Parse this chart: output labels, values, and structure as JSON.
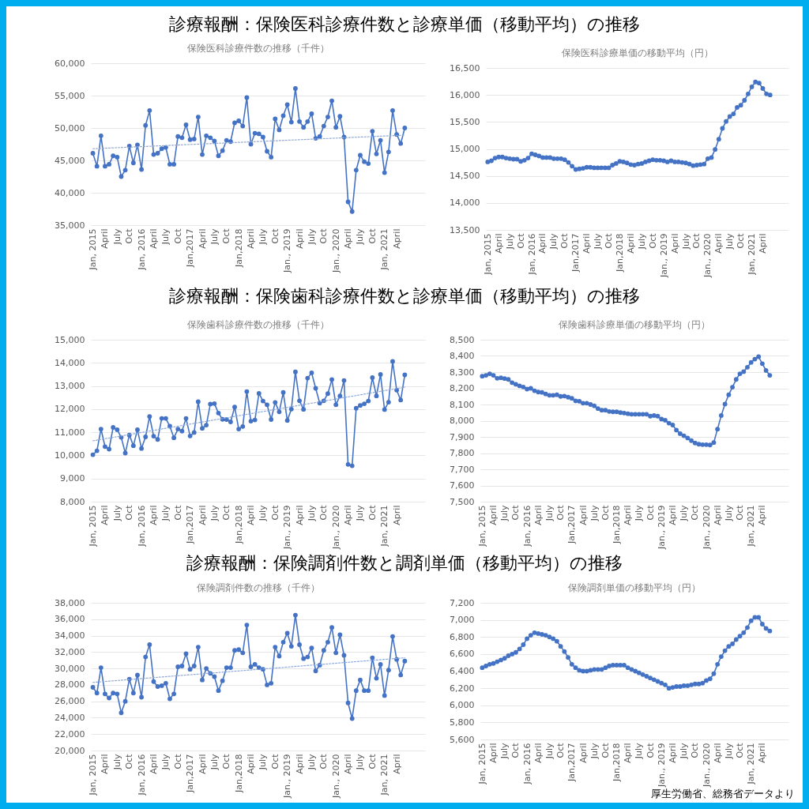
{
  "chart_data": [
    {
      "type": "other",
      "title": "診療報酬：保険医科診療件数と診療単価（移動平均）の推移"
    },
    {
      "type": "line",
      "title": "保険医科診療件数の推移（千件）",
      "categories": [
        "Jan, 2015",
        null,
        null,
        "April",
        null,
        null,
        "July",
        null,
        null,
        "Oct",
        null,
        null,
        "Jan, 2016",
        null,
        null,
        "April",
        null,
        null,
        "July",
        null,
        null,
        "Oct",
        null,
        null,
        "Jan,2017",
        null,
        null,
        "April",
        null,
        null,
        "July",
        null,
        null,
        "Oct",
        null,
        null,
        "Jan,2018",
        null,
        null,
        "April",
        null,
        null,
        "July",
        null,
        null,
        "Oct",
        null,
        null,
        "Jan., 2019",
        null,
        null,
        "April",
        null,
        null,
        "July",
        null,
        null,
        "Oct",
        null,
        null,
        "Jan., 2020",
        null,
        null,
        "April",
        null,
        null,
        "July",
        null,
        null,
        "Oct",
        null,
        null,
        "Jan, 2021",
        null,
        null,
        "April",
        null,
        null
      ],
      "ylim": [
        35000,
        60000
      ],
      "yticks": [
        {
          "value": 35000,
          "label": "35,000"
        },
        {
          "value": 40000,
          "label": "40,000"
        },
        {
          "value": 45000,
          "label": "45,000"
        },
        {
          "value": 50000,
          "label": "50,000"
        },
        {
          "value": 55000,
          "label": "55,000"
        },
        {
          "value": 60000,
          "label": "60,000"
        }
      ],
      "grid": "y",
      "marker": "circle",
      "series": [
        {
          "color": "#4472c4",
          "values": [
            46100,
            44100,
            48800,
            44100,
            44400,
            45700,
            45500,
            42500,
            43500,
            47200,
            44600,
            47400,
            43600,
            50400,
            52700,
            45900,
            46100,
            46800,
            47000,
            44400,
            44400,
            48700,
            48500,
            50500,
            48200,
            48300,
            51700,
            45900,
            48800,
            48500,
            48000,
            45700,
            46500,
            48100,
            47900,
            50800,
            51100,
            50300,
            54700,
            47500,
            49200,
            49100,
            48600,
            46400,
            45500,
            51400,
            49700,
            51900,
            53600,
            50900,
            56100,
            51000,
            50100,
            51000,
            52200,
            48400,
            48700,
            50300,
            51700,
            54200,
            50100,
            51800,
            48600,
            38600,
            37100,
            43500,
            45800,
            44800,
            44500,
            49500,
            46000,
            48100,
            43100,
            46300,
            52700,
            49000,
            47600,
            50000
          ]
        },
        {
          "type": "line",
          "color": "#8eaadb",
          "line_style": "dotted",
          "marker": "none",
          "values": [
            46800,
            null,
            null,
            null,
            null,
            null,
            null,
            null,
            null,
            null,
            null,
            null,
            null,
            null,
            null,
            null,
            null,
            null,
            null,
            null,
            null,
            null,
            null,
            null,
            null,
            null,
            null,
            null,
            null,
            null,
            null,
            null,
            null,
            null,
            null,
            null,
            null,
            null,
            null,
            null,
            null,
            null,
            null,
            null,
            null,
            null,
            null,
            null,
            null,
            null,
            null,
            null,
            null,
            null,
            null,
            null,
            null,
            null,
            null,
            null,
            null,
            null,
            null,
            null,
            null,
            null,
            null,
            null,
            null,
            null,
            null,
            null,
            null,
            null,
            null,
            null,
            null,
            48900
          ]
        }
      ]
    },
    {
      "type": "line",
      "title": "保険医科診療単価の移動平均（円）",
      "categories": [
        "Jan, 2015",
        null,
        null,
        "April",
        null,
        null,
        "July",
        null,
        null,
        "Oct",
        null,
        null,
        "Jan, 2016",
        null,
        null,
        "April",
        null,
        null,
        "July",
        null,
        null,
        "Oct",
        null,
        null,
        "Jan,2017",
        null,
        null,
        "April",
        null,
        null,
        "July",
        null,
        null,
        "Oct",
        null,
        null,
        "Jan,2018",
        null,
        null,
        "April",
        null,
        null,
        "July",
        null,
        null,
        "Oct",
        null,
        null,
        "Jan., 2019",
        null,
        null,
        "April",
        null,
        null,
        "July",
        null,
        null,
        "Oct",
        null,
        null,
        "Jan., 2020",
        null,
        null,
        "April",
        null,
        null,
        "July",
        null,
        null,
        "Oct",
        null,
        null,
        "Jan, 2021",
        null,
        null,
        "April",
        null,
        null
      ],
      "ylim": [
        13500,
        16500
      ],
      "yticks": [
        {
          "value": 13500,
          "label": "13,500"
        },
        {
          "value": 14000,
          "label": "14,000"
        },
        {
          "value": 14500,
          "label": "14,500"
        },
        {
          "value": 15000,
          "label": "15,000"
        },
        {
          "value": 15500,
          "label": "15,500"
        },
        {
          "value": 16000,
          "label": "16,000"
        },
        {
          "value": 16500,
          "label": "16,500"
        }
      ],
      "grid": "y",
      "marker": "circle",
      "series": [
        {
          "color": "#4472c4",
          "values": [
            14760,
            14780,
            14830,
            14850,
            14850,
            14830,
            14820,
            14810,
            14810,
            14770,
            14790,
            14830,
            14910,
            14890,
            14870,
            14840,
            14840,
            14840,
            14820,
            14820,
            14820,
            14800,
            14750,
            14680,
            14620,
            14630,
            14640,
            14660,
            14660,
            14650,
            14650,
            14650,
            14650,
            14650,
            14700,
            14730,
            14770,
            14760,
            14740,
            14710,
            14700,
            14720,
            14730,
            14760,
            14780,
            14800,
            14790,
            14790,
            14780,
            14760,
            14780,
            14760,
            14760,
            14750,
            14740,
            14720,
            14690,
            14700,
            14710,
            14720,
            14820,
            14840,
            14990,
            15180,
            15380,
            15510,
            15600,
            15650,
            15770,
            15810,
            15900,
            16020,
            16150,
            16240,
            16220,
            16120,
            16020,
            16000
          ]
        }
      ]
    },
    {
      "type": "other",
      "title": "診療報酬：保険歯科診療件数と診療単価（移動平均）の推移"
    },
    {
      "type": "line",
      "title": "保険歯科診療件数の推移（千件）",
      "categories": [
        "Jan, 2015",
        null,
        null,
        "April",
        null,
        null,
        "July",
        null,
        null,
        "Oct",
        null,
        null,
        "Jan, 2016",
        null,
        null,
        "April",
        null,
        null,
        "July",
        null,
        null,
        "Oct",
        null,
        null,
        "Jan,2017",
        null,
        null,
        "April",
        null,
        null,
        "July",
        null,
        null,
        "Oct",
        null,
        null,
        "Jan,2018",
        null,
        null,
        "April",
        null,
        null,
        "July",
        null,
        null,
        "Oct",
        null,
        null,
        "Jan., 2019",
        null,
        null,
        "April",
        null,
        null,
        "July",
        null,
        null,
        "Oct",
        null,
        null,
        "Jan., 2020",
        null,
        null,
        "April",
        null,
        null,
        "July",
        null,
        null,
        "Oct",
        null,
        null,
        "Jan, 2021",
        null,
        null,
        "April",
        null,
        null
      ],
      "ylim": [
        8000,
        15000
      ],
      "yticks": [
        {
          "value": 8000,
          "label": "8,000"
        },
        {
          "value": 9000,
          "label": "9,000"
        },
        {
          "value": 10000,
          "label": "10,000"
        },
        {
          "value": 11000,
          "label": "11,000"
        },
        {
          "value": 12000,
          "label": "12,000"
        },
        {
          "value": 13000,
          "label": "13,000"
        },
        {
          "value": 14000,
          "label": "14,000"
        },
        {
          "value": 15000,
          "label": "15,000"
        }
      ],
      "grid": "y",
      "marker": "circle",
      "series": [
        {
          "color": "#4472c4",
          "values": [
            10030,
            10200,
            11140,
            10380,
            10270,
            11210,
            11110,
            10780,
            10100,
            10880,
            10420,
            11110,
            10300,
            10800,
            11680,
            10830,
            10690,
            11600,
            11600,
            11260,
            10760,
            11140,
            11050,
            11600,
            10840,
            10990,
            12320,
            11170,
            11310,
            12220,
            12240,
            11830,
            11560,
            11550,
            11450,
            12090,
            11140,
            11250,
            12760,
            11480,
            11530,
            12680,
            12350,
            12190,
            11550,
            12290,
            11880,
            12720,
            11510,
            12000,
            13610,
            12360,
            11990,
            13340,
            13570,
            12900,
            12260,
            12360,
            12670,
            13280,
            12190,
            12570,
            13240,
            9610,
            9550,
            12040,
            12160,
            12230,
            12350,
            13360,
            12570,
            13500,
            11980,
            12300,
            14060,
            12820,
            12390,
            13480
          ]
        },
        {
          "type": "line",
          "color": "#8eaadb",
          "line_style": "dotted",
          "marker": "none",
          "values": [
            10630,
            null,
            null,
            null,
            null,
            null,
            null,
            null,
            null,
            null,
            null,
            null,
            null,
            null,
            null,
            null,
            null,
            null,
            null,
            null,
            null,
            null,
            null,
            null,
            null,
            null,
            null,
            null,
            null,
            null,
            null,
            null,
            null,
            null,
            null,
            null,
            null,
            null,
            null,
            null,
            null,
            null,
            null,
            null,
            null,
            null,
            null,
            null,
            null,
            null,
            null,
            null,
            null,
            null,
            null,
            null,
            null,
            null,
            null,
            null,
            null,
            null,
            null,
            null,
            null,
            null,
            null,
            null,
            null,
            null,
            null,
            null,
            null,
            null,
            null,
            null,
            null,
            12950
          ]
        }
      ]
    },
    {
      "type": "line",
      "title": "保険歯科診療単価の移動平均（円）",
      "categories": [
        "Jan, 2015",
        null,
        null,
        "April",
        null,
        null,
        "July",
        null,
        null,
        "Oct",
        null,
        null,
        "Jan, 2016",
        null,
        null,
        "April",
        null,
        null,
        "July",
        null,
        null,
        "Oct",
        null,
        null,
        "Jan,2017",
        null,
        null,
        "April",
        null,
        null,
        "July",
        null,
        null,
        "Oct",
        null,
        null,
        "Jan,2018",
        null,
        null,
        "April",
        null,
        null,
        "July",
        null,
        null,
        "Oct",
        null,
        null,
        "Jan., 2019",
        null,
        null,
        "April",
        null,
        null,
        "July",
        null,
        null,
        "Oct",
        null,
        null,
        "Jan., 2020",
        null,
        null,
        "April",
        null,
        null,
        "July",
        null,
        null,
        "Oct",
        null,
        null,
        "Jan, 2021",
        null,
        null,
        "April",
        null,
        null
      ],
      "ylim": [
        7500,
        8500
      ],
      "yticks": [
        {
          "value": 7500,
          "label": "7,500"
        },
        {
          "value": 7600,
          "label": "7,600"
        },
        {
          "value": 7700,
          "label": "7,700"
        },
        {
          "value": 7800,
          "label": "7,800"
        },
        {
          "value": 7900,
          "label": "7,900"
        },
        {
          "value": 8000,
          "label": "8,000"
        },
        {
          "value": 8100,
          "label": "8,100"
        },
        {
          "value": 8200,
          "label": "8,200"
        },
        {
          "value": 8300,
          "label": "8,300"
        },
        {
          "value": 8400,
          "label": "8,400"
        },
        {
          "value": 8500,
          "label": "8,500"
        }
      ],
      "grid": "y",
      "marker": "circle",
      "series": [
        {
          "color": "#4472c4",
          "values": [
            8275,
            8280,
            8290,
            8280,
            8262,
            8265,
            8260,
            8255,
            8235,
            8225,
            8215,
            8208,
            8195,
            8200,
            8185,
            8177,
            8175,
            8165,
            8157,
            8157,
            8160,
            8150,
            8152,
            8145,
            8138,
            8122,
            8120,
            8108,
            8108,
            8100,
            8092,
            8075,
            8065,
            8065,
            8057,
            8055,
            8055,
            8050,
            8047,
            8043,
            8040,
            8040,
            8040,
            8040,
            8040,
            8028,
            8032,
            8028,
            8010,
            8003,
            7985,
            7973,
            7942,
            7920,
            7907,
            7893,
            7877,
            7862,
            7855,
            7852,
            7852,
            7850,
            7865,
            7948,
            8032,
            8103,
            8160,
            8207,
            8255,
            8290,
            8303,
            8330,
            8360,
            8380,
            8395,
            8352,
            8310,
            8280
          ]
        }
      ]
    },
    {
      "type": "other",
      "title": "診療報酬：保険調剤件数と調剤単価（移動平均）の推移"
    },
    {
      "type": "line",
      "title": "保険調剤件数の推移（千件）",
      "categories": [
        "Jan, 2015",
        null,
        null,
        "April",
        null,
        null,
        "July",
        null,
        null,
        "Oct",
        null,
        null,
        "Jan, 2016",
        null,
        null,
        "April",
        null,
        null,
        "July",
        null,
        null,
        "Oct",
        null,
        null,
        "Jan,2017",
        null,
        null,
        "April",
        null,
        null,
        "July",
        null,
        null,
        "Oct",
        null,
        null,
        "Jan,2018",
        null,
        null,
        "April",
        null,
        null,
        "July",
        null,
        null,
        "Oct",
        null,
        null,
        "Jan., 2019",
        null,
        null,
        "April",
        null,
        null,
        "July",
        null,
        null,
        "Oct",
        null,
        null,
        "Jan., 2020",
        null,
        null,
        "April",
        null,
        null,
        "July",
        null,
        null,
        "Oct",
        null,
        null,
        "Jan, 2021",
        null,
        null,
        "April",
        null,
        null
      ],
      "ylim": [
        20000,
        38000
      ],
      "yticks": [
        {
          "value": 20000,
          "label": "20,000"
        },
        {
          "value": 22000,
          "label": "22,000"
        },
        {
          "value": 24000,
          "label": "24,000"
        },
        {
          "value": 26000,
          "label": "26,000"
        },
        {
          "value": 28000,
          "label": "28,000"
        },
        {
          "value": 30000,
          "label": "30,000"
        },
        {
          "value": 32000,
          "label": "32,000"
        },
        {
          "value": 34000,
          "label": "34,000"
        },
        {
          "value": 36000,
          "label": "36,000"
        },
        {
          "value": 38000,
          "label": "38,000"
        }
      ],
      "grid": "y",
      "marker": "circle",
      "series": [
        {
          "color": "#4472c4",
          "values": [
            27700,
            27000,
            30100,
            26900,
            26400,
            27000,
            26900,
            24600,
            26000,
            28700,
            27000,
            29200,
            26500,
            31400,
            32900,
            28400,
            27800,
            27900,
            28200,
            26300,
            26900,
            30200,
            30300,
            31800,
            29900,
            30300,
            32600,
            28600,
            30000,
            29400,
            29000,
            27300,
            28500,
            30100,
            30100,
            32200,
            32300,
            31900,
            35300,
            30200,
            30500,
            30100,
            29900,
            28000,
            28200,
            32600,
            31500,
            33200,
            34300,
            32700,
            36500,
            32900,
            31200,
            31400,
            32500,
            29700,
            30400,
            32200,
            33200,
            35000,
            31900,
            34100,
            31600,
            25800,
            23900,
            27300,
            28600,
            27300,
            27300,
            31300,
            28800,
            30500,
            26700,
            29800,
            33900,
            31100,
            29200,
            30900
          ]
        },
        {
          "type": "line",
          "color": "#8eaadb",
          "line_style": "dotted",
          "marker": "none",
          "values": [
            28300,
            null,
            null,
            null,
            null,
            null,
            null,
            null,
            null,
            null,
            null,
            null,
            null,
            null,
            null,
            null,
            null,
            null,
            null,
            null,
            null,
            null,
            null,
            null,
            null,
            null,
            null,
            null,
            null,
            null,
            null,
            null,
            null,
            null,
            null,
            null,
            null,
            null,
            null,
            null,
            null,
            null,
            null,
            null,
            null,
            null,
            null,
            null,
            null,
            null,
            null,
            null,
            null,
            null,
            null,
            null,
            null,
            null,
            null,
            null,
            null,
            null,
            null,
            null,
            null,
            null,
            null,
            null,
            null,
            null,
            null,
            null,
            null,
            null,
            null,
            null,
            null,
            31300
          ]
        }
      ]
    },
    {
      "type": "line",
      "title": "保険調剤単価の移動平均（円）",
      "annotations": [
        "厚生労働省、総務省データより"
      ],
      "categories": [
        "Jan, 2015",
        null,
        null,
        "April",
        null,
        null,
        "July",
        null,
        null,
        "Oct",
        null,
        null,
        "Jan, 2016",
        null,
        null,
        "April",
        null,
        null,
        "July",
        null,
        null,
        "Oct",
        null,
        null,
        "Jan,2017",
        null,
        null,
        "April",
        null,
        null,
        "July",
        null,
        null,
        "Oct",
        null,
        null,
        "Jan,2018",
        null,
        null,
        "April",
        null,
        null,
        "July",
        null,
        null,
        "Oct",
        null,
        null,
        "Jan., 2019",
        null,
        null,
        "April",
        null,
        null,
        "July",
        null,
        null,
        "Oct",
        null,
        null,
        "Jan., 2020",
        null,
        null,
        "April",
        null,
        null,
        "July",
        null,
        null,
        "Oct",
        null,
        null,
        "Jan, 2021",
        null,
        null,
        "April",
        null,
        null
      ],
      "ylim": [
        5600,
        7200
      ],
      "yticks": [
        {
          "value": 5600,
          "label": "5,600"
        },
        {
          "value": 5800,
          "label": "5,800"
        },
        {
          "value": 6000,
          "label": "6,000"
        },
        {
          "value": 6200,
          "label": "6,200"
        },
        {
          "value": 6400,
          "label": "6,400"
        },
        {
          "value": 6600,
          "label": "6,600"
        },
        {
          "value": 6800,
          "label": "6,800"
        },
        {
          "value": 7000,
          "label": "7,000"
        },
        {
          "value": 7200,
          "label": "7,200"
        }
      ],
      "grid": "y",
      "marker": "circle",
      "series": [
        {
          "color": "#4472c4",
          "values": [
            6440,
            6460,
            6480,
            6490,
            6510,
            6530,
            6550,
            6580,
            6600,
            6620,
            6660,
            6710,
            6780,
            6820,
            6850,
            6840,
            6830,
            6820,
            6800,
            6780,
            6750,
            6690,
            6630,
            6560,
            6480,
            6440,
            6410,
            6400,
            6400,
            6410,
            6420,
            6420,
            6420,
            6440,
            6460,
            6470,
            6470,
            6470,
            6470,
            6440,
            6420,
            6400,
            6380,
            6360,
            6340,
            6320,
            6300,
            6280,
            6260,
            6240,
            6200,
            6210,
            6220,
            6220,
            6230,
            6230,
            6240,
            6250,
            6250,
            6260,
            6290,
            6310,
            6370,
            6480,
            6570,
            6640,
            6690,
            6720,
            6770,
            6810,
            6850,
            6910,
            6990,
            7030,
            7030,
            6950,
            6900,
            6870
          ]
        }
      ]
    }
  ]
}
